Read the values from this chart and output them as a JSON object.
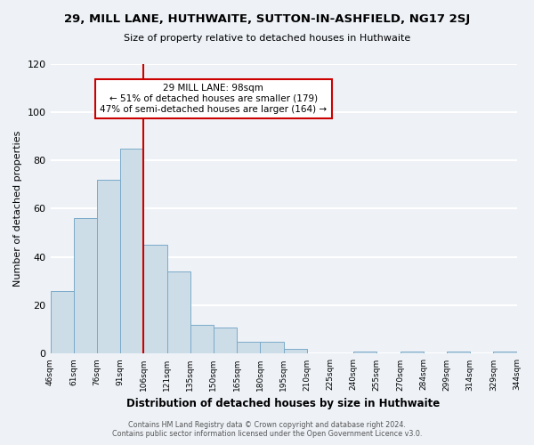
{
  "title": "29, MILL LANE, HUTHWAITE, SUTTON-IN-ASHFIELD, NG17 2SJ",
  "subtitle": "Size of property relative to detached houses in Huthwaite",
  "xlabel": "Distribution of detached houses by size in Huthwaite",
  "ylabel": "Number of detached properties",
  "bar_values": [
    26,
    56,
    72,
    85,
    45,
    34,
    12,
    11,
    5,
    5,
    2,
    0,
    0,
    1,
    0,
    1,
    0,
    1,
    0,
    1
  ],
  "tick_labels": [
    "46sqm",
    "61sqm",
    "76sqm",
    "91sqm",
    "106sqm",
    "121sqm",
    "135sqm",
    "150sqm",
    "165sqm",
    "180sqm",
    "195sqm",
    "210sqm",
    "225sqm",
    "240sqm",
    "255sqm",
    "270sqm",
    "284sqm",
    "299sqm",
    "314sqm",
    "329sqm",
    "344sqm"
  ],
  "bar_color": "#ccdde8",
  "bar_edge_color": "#7aaac8",
  "ylim": [
    0,
    120
  ],
  "yticks": [
    0,
    20,
    40,
    60,
    80,
    100,
    120
  ],
  "property_line_color": "#cc0000",
  "annotation_title": "29 MILL LANE: 98sqm",
  "annotation_line1": "← 51% of detached houses are smaller (179)",
  "annotation_line2": "47% of semi-detached houses are larger (164) →",
  "footnote1": "Contains HM Land Registry data © Crown copyright and database right 2024.",
  "footnote2": "Contains public sector information licensed under the Open Government Licence v3.0.",
  "background_color": "#eef2f7",
  "plot_background": "#eef2f7",
  "grid_color": "#ffffff"
}
